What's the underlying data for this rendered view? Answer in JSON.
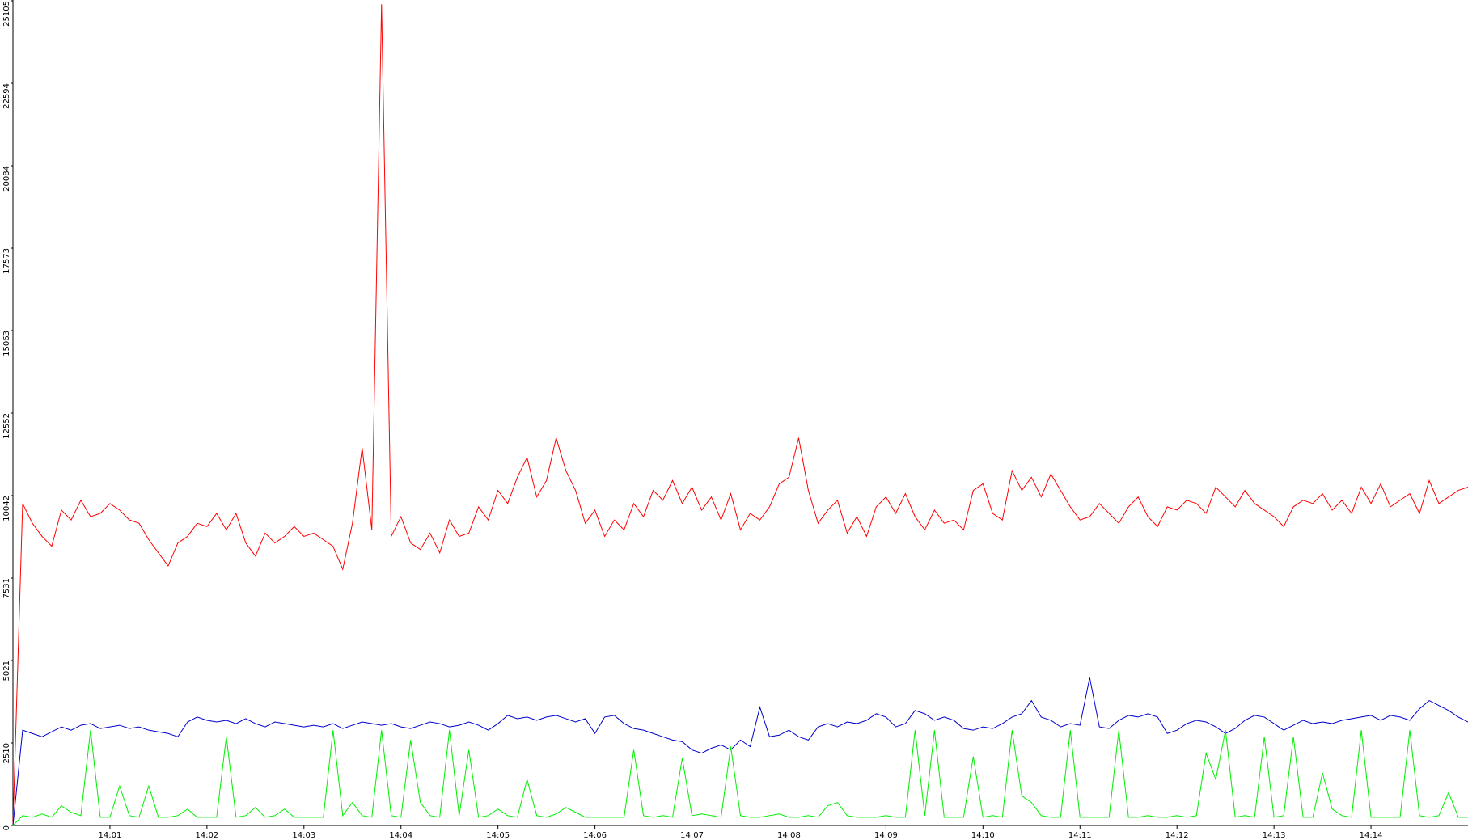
{
  "chart_data": {
    "type": "line",
    "xlim": [
      0,
      15
    ],
    "xticks": [
      {
        "value": 1,
        "label": "14:01"
      },
      {
        "value": 2,
        "label": "14:02"
      },
      {
        "value": 3,
        "label": "14:03"
      },
      {
        "value": 4,
        "label": "14:04"
      },
      {
        "value": 5,
        "label": "14:05"
      },
      {
        "value": 6,
        "label": "14:06"
      },
      {
        "value": 7,
        "label": "14:07"
      },
      {
        "value": 8,
        "label": "14:08"
      },
      {
        "value": 9,
        "label": "14:09"
      },
      {
        "value": 10,
        "label": "14:10"
      },
      {
        "value": 11,
        "label": "14:11"
      },
      {
        "value": 12,
        "label": "14:12"
      },
      {
        "value": 13,
        "label": "14:13"
      },
      {
        "value": 14,
        "label": "14:14"
      }
    ],
    "ylim": [
      0,
      25105
    ],
    "yticks": [
      0,
      2510,
      5021,
      7531,
      10042,
      12552,
      15063,
      17573,
      20084,
      22594,
      25105
    ],
    "x": [
      0,
      0.1,
      0.2,
      0.3,
      0.4,
      0.5,
      0.6,
      0.7,
      0.8,
      0.9,
      1,
      1.1,
      1.2,
      1.3,
      1.4,
      1.5,
      1.6,
      1.7,
      1.8,
      1.9,
      2,
      2.1,
      2.2,
      2.3,
      2.4,
      2.5,
      2.6,
      2.7,
      2.8,
      2.9,
      3,
      3.1,
      3.2,
      3.3,
      3.4,
      3.5,
      3.6,
      3.7,
      3.8,
      3.9,
      4,
      4.1,
      4.2,
      4.3,
      4.4,
      4.5,
      4.6,
      4.7,
      4.8,
      4.9,
      5,
      5.1,
      5.2,
      5.3,
      5.4,
      5.5,
      5.6,
      5.7,
      5.8,
      5.9,
      6,
      6.1,
      6.2,
      6.3,
      6.4,
      6.5,
      6.6,
      6.7,
      6.8,
      6.9,
      7,
      7.1,
      7.2,
      7.3,
      7.4,
      7.5,
      7.6,
      7.7,
      7.8,
      7.9,
      8,
      8.1,
      8.2,
      8.3,
      8.4,
      8.5,
      8.6,
      8.7,
      8.8,
      8.9,
      9,
      9.1,
      9.2,
      9.3,
      9.4,
      9.5,
      9.6,
      9.7,
      9.8,
      9.9,
      10,
      10.1,
      10.2,
      10.3,
      10.4,
      10.5,
      10.6,
      10.7,
      10.8,
      10.9,
      11,
      11.1,
      11.2,
      11.3,
      11.4,
      11.5,
      11.6,
      11.7,
      11.8,
      11.9,
      12,
      12.1,
      12.2,
      12.3,
      12.4,
      12.5,
      12.6,
      12.7,
      12.8,
      12.9,
      13,
      13.1,
      13.2,
      13.3,
      13.4,
      13.5,
      13.6,
      13.7,
      13.8,
      13.9,
      14,
      14.1,
      14.2,
      14.3,
      14.4,
      14.5,
      14.6,
      14.7,
      14.8,
      14.9,
      15
    ],
    "series": [
      {
        "color": "#ff0000",
        "values": [
          0,
          9800,
          9200,
          8800,
          8500,
          9600,
          9300,
          9900,
          9400,
          9500,
          9800,
          9600,
          9300,
          9200,
          8700,
          8300,
          7900,
          8600,
          8800,
          9200,
          9100,
          9500,
          9000,
          9500,
          8600,
          8200,
          8900,
          8600,
          8800,
          9100,
          8800,
          8900,
          8700,
          8500,
          7800,
          9200,
          11500,
          9000,
          25000,
          8800,
          9400,
          8600,
          8400,
          8900,
          8300,
          9300,
          8800,
          8900,
          9700,
          9300,
          10200,
          9800,
          10600,
          11200,
          10000,
          10500,
          11800,
          10800,
          10200,
          9200,
          9600,
          8800,
          9300,
          9000,
          9800,
          9400,
          10200,
          9900,
          10500,
          9800,
          10300,
          9600,
          10000,
          9300,
          10100,
          9000,
          9500,
          9300,
          9700,
          10400,
          10600,
          11800,
          10200,
          9200,
          9600,
          9900,
          8900,
          9400,
          8800,
          9700,
          10000,
          9500,
          10100,
          9400,
          9000,
          9600,
          9200,
          9300,
          9000,
          10200,
          10400,
          9500,
          9300,
          10800,
          10200,
          10600,
          10000,
          10700,
          10200,
          9700,
          9300,
          9400,
          9800,
          9500,
          9200,
          9700,
          10000,
          9400,
          9100,
          9700,
          9600,
          9900,
          9800,
          9500,
          10300,
          10000,
          9700,
          10200,
          9800,
          9600,
          9400,
          9100,
          9700,
          9900,
          9800,
          10100,
          9600,
          9900,
          9500,
          10300,
          9800,
          10400,
          9700,
          9900,
          10100,
          9500,
          10500,
          9800,
          10000,
          10200,
          10300
        ]
      },
      {
        "color": "#0000cc",
        "values": [
          0,
          2900,
          2800,
          2700,
          2850,
          3000,
          2900,
          3050,
          3100,
          2950,
          3000,
          3050,
          2950,
          3000,
          2900,
          2850,
          2800,
          2700,
          3150,
          3300,
          3200,
          3150,
          3200,
          3100,
          3250,
          3100,
          3000,
          3150,
          3100,
          3050,
          3000,
          3050,
          3000,
          3100,
          2950,
          3050,
          3150,
          3100,
          3050,
          3100,
          3000,
          2950,
          3050,
          3150,
          3100,
          3000,
          3050,
          3150,
          3050,
          2900,
          3100,
          3350,
          3250,
          3300,
          3200,
          3300,
          3350,
          3250,
          3150,
          3250,
          2800,
          3300,
          3350,
          3100,
          2950,
          2900,
          2800,
          2700,
          2600,
          2550,
          2300,
          2200,
          2350,
          2450,
          2300,
          2600,
          2400,
          3600,
          2700,
          2750,
          2900,
          2700,
          2600,
          3000,
          3100,
          3000,
          3150,
          3100,
          3200,
          3400,
          3300,
          3000,
          3100,
          3500,
          3400,
          3200,
          3300,
          3200,
          2950,
          2900,
          3000,
          2950,
          3100,
          3300,
          3400,
          3800,
          3300,
          3200,
          3000,
          3100,
          3050,
          4500,
          3000,
          2950,
          3200,
          3350,
          3300,
          3400,
          3300,
          2800,
          2900,
          3100,
          3200,
          3150,
          3000,
          2800,
          2950,
          3200,
          3350,
          3300,
          3100,
          2900,
          3050,
          3200,
          3100,
          3150,
          3100,
          3200,
          3250,
          3300,
          3350,
          3200,
          3350,
          3300,
          3200,
          3550,
          3800,
          3650,
          3500,
          3300,
          3150
        ]
      },
      {
        "color": "#00ee00",
        "values": [
          0,
          300,
          250,
          350,
          250,
          600,
          400,
          300,
          2900,
          250,
          250,
          1200,
          300,
          250,
          1200,
          250,
          250,
          300,
          500,
          250,
          250,
          250,
          2700,
          250,
          300,
          550,
          250,
          300,
          500,
          250,
          250,
          250,
          250,
          2900,
          300,
          700,
          300,
          250,
          2900,
          300,
          250,
          2600,
          700,
          300,
          250,
          2900,
          300,
          2300,
          250,
          300,
          500,
          300,
          250,
          1400,
          300,
          250,
          350,
          550,
          400,
          250,
          250,
          250,
          250,
          250,
          2300,
          300,
          250,
          300,
          250,
          2050,
          300,
          350,
          300,
          250,
          2400,
          300,
          250,
          250,
          300,
          350,
          250,
          250,
          300,
          250,
          600,
          700,
          300,
          250,
          250,
          250,
          300,
          250,
          250,
          2900,
          300,
          2900,
          250,
          250,
          250,
          2100,
          250,
          300,
          250,
          2900,
          900,
          700,
          300,
          250,
          250,
          2900,
          250,
          250,
          250,
          250,
          2900,
          250,
          250,
          300,
          250,
          250,
          300,
          250,
          300,
          2200,
          1400,
          2900,
          250,
          300,
          250,
          2700,
          250,
          300,
          2700,
          250,
          250,
          1600,
          500,
          300,
          250,
          2900,
          250,
          250,
          250,
          250,
          2900,
          300,
          250,
          300,
          1000,
          250,
          250
        ]
      }
    ]
  }
}
